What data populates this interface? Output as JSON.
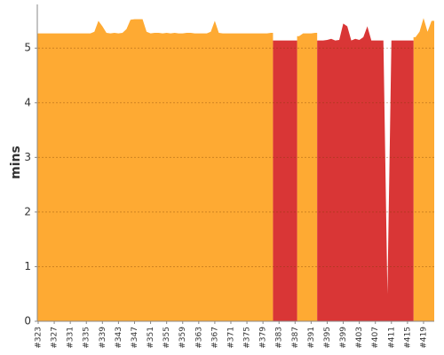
{
  "chart_data": {
    "type": "area",
    "y_label": "mins",
    "categories": [
      "#323",
      null,
      null,
      null,
      "#327",
      null,
      null,
      null,
      "#331",
      null,
      null,
      null,
      "#335",
      null,
      null,
      null,
      "#339",
      null,
      null,
      null,
      "#343",
      null,
      null,
      null,
      "#347",
      null,
      null,
      null,
      "#351",
      null,
      null,
      null,
      "#355",
      null,
      null,
      null,
      "#359",
      null,
      null,
      null,
      "#363",
      null,
      null,
      null,
      "#367",
      null,
      null,
      null,
      "#371",
      null,
      null,
      null,
      "#375",
      null,
      null,
      null,
      "#379",
      null,
      null,
      null,
      "#383",
      null,
      null,
      null,
      "#387",
      null,
      null,
      null,
      "#391",
      null,
      null,
      null,
      "#395",
      null,
      null,
      null,
      "#399",
      null,
      null,
      null,
      "#403",
      null,
      null,
      null,
      "#407",
      null,
      null,
      null,
      "#411",
      null,
      null,
      null,
      "#415",
      null,
      null,
      null,
      "#419",
      null,
      null
    ],
    "series": [
      {
        "color": "#feaa33",
        "values": [
          5.27,
          5.27,
          5.27,
          5.27,
          5.27,
          5.27,
          5.27,
          5.27,
          5.27,
          5.27,
          5.27,
          5.27,
          5.27,
          5.27,
          5.3,
          5.5,
          5.4,
          5.28,
          5.27,
          5.28,
          5.27,
          5.28,
          5.35,
          5.52,
          5.53,
          5.53,
          5.53,
          5.3,
          5.27,
          5.28,
          5.28,
          5.27,
          5.28,
          5.27,
          5.28,
          5.27,
          5.27,
          5.28,
          5.28,
          5.27,
          5.27,
          5.27,
          5.27,
          5.3,
          5.5,
          5.28,
          5.27,
          5.27,
          5.27,
          5.27,
          5.27,
          5.27,
          5.27,
          5.27,
          5.27,
          5.27,
          5.27,
          5.27,
          5.28,
          null,
          null,
          null,
          null,
          null,
          null,
          5.22,
          5.27,
          5.27,
          5.27,
          5.28,
          null,
          null,
          null,
          null,
          null,
          null,
          null,
          null,
          null,
          null,
          null,
          null,
          null,
          null,
          null,
          null,
          null,
          null,
          null,
          null,
          null,
          null,
          null,
          null,
          5.2,
          5.3,
          5.55,
          5.3,
          5.5
        ]
      },
      {
        "color": "#d93636",
        "values": [
          null,
          null,
          null,
          null,
          null,
          null,
          null,
          null,
          null,
          null,
          null,
          null,
          null,
          null,
          null,
          null,
          null,
          null,
          null,
          null,
          null,
          null,
          null,
          null,
          null,
          null,
          null,
          null,
          null,
          null,
          null,
          null,
          null,
          null,
          null,
          null,
          null,
          null,
          null,
          null,
          null,
          null,
          null,
          null,
          null,
          null,
          null,
          null,
          null,
          null,
          null,
          null,
          null,
          null,
          null,
          null,
          null,
          null,
          null,
          5.14,
          5.14,
          5.14,
          5.14,
          5.14,
          5.14,
          null,
          null,
          null,
          null,
          null,
          5.14,
          5.14,
          5.15,
          5.17,
          5.14,
          5.15,
          5.45,
          5.4,
          5.14,
          5.17,
          5.15,
          5.2,
          5.4,
          5.14,
          5.14,
          5.14,
          5.14,
          0.5,
          5.14,
          5.14,
          5.14,
          5.14,
          5.14,
          5.14,
          null,
          null,
          null,
          null,
          null
        ]
      }
    ],
    "ylim": [
      0,
      5.8
    ],
    "yticks": [
      0,
      1,
      2,
      3,
      4,
      5
    ],
    "grid": true
  }
}
